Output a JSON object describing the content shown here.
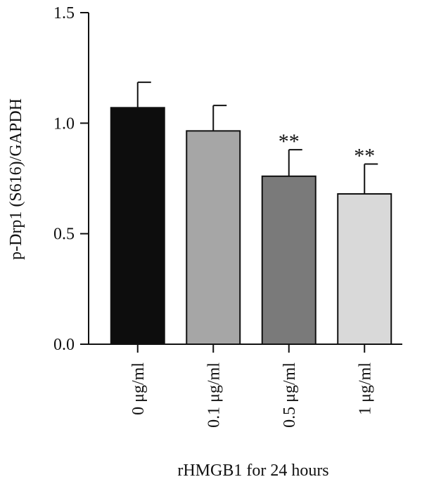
{
  "chart_data": {
    "type": "bar",
    "title": "",
    "xlabel": "rHMGB1 for 24 hours",
    "ylabel": "p-Drp1 (S616)/GAPDH",
    "ylim": [
      0,
      1.5
    ],
    "yticks": [
      0.0,
      0.5,
      1.0,
      1.5
    ],
    "ytick_labels": [
      "0.0",
      "0.5",
      "1.0",
      "1.5"
    ],
    "grid": false,
    "legend": "none",
    "categories": [
      "0 μg/ml",
      "0.1 μg/ml",
      "0.5 μg/ml",
      "1 μg/ml"
    ],
    "values": [
      1.07,
      0.965,
      0.76,
      0.68
    ],
    "errors": [
      0.115,
      0.115,
      0.12,
      0.135
    ],
    "significance": [
      "",
      "",
      "**",
      "**"
    ],
    "bar_colors": [
      "#0d0d0d",
      "#a6a6a6",
      "#7a7a7a",
      "#d9d9d9"
    ]
  }
}
